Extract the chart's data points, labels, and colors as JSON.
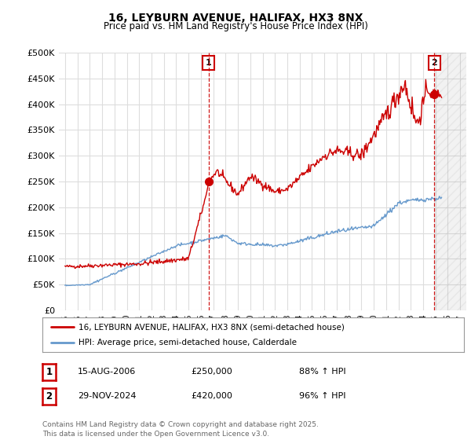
{
  "title": "16, LEYBURN AVENUE, HALIFAX, HX3 8NX",
  "subtitle": "Price paid vs. HM Land Registry's House Price Index (HPI)",
  "ylabel_ticks": [
    "£0",
    "£50K",
    "£100K",
    "£150K",
    "£200K",
    "£250K",
    "£300K",
    "£350K",
    "£400K",
    "£450K",
    "£500K"
  ],
  "ytick_vals": [
    0,
    50000,
    100000,
    150000,
    200000,
    250000,
    300000,
    350000,
    400000,
    450000,
    500000
  ],
  "ylim": [
    0,
    500000
  ],
  "xlim_start": 1994.5,
  "xlim_end": 2027.5,
  "xtick_years": [
    1995,
    1996,
    1997,
    1998,
    1999,
    2000,
    2001,
    2002,
    2003,
    2004,
    2005,
    2006,
    2007,
    2008,
    2009,
    2010,
    2011,
    2012,
    2013,
    2014,
    2015,
    2016,
    2017,
    2018,
    2019,
    2020,
    2021,
    2022,
    2023,
    2024,
    2025,
    2026,
    2027
  ],
  "red_line_color": "#cc0000",
  "blue_line_color": "#6699cc",
  "vline1_x": 2006.617,
  "vline2_x": 2024.914,
  "vline_color": "#cc0000",
  "marker1_y": 250000,
  "marker2_y": 420000,
  "annotation1_label": "1",
  "annotation2_label": "2",
  "legend_line1": "16, LEYBURN AVENUE, HALIFAX, HX3 8NX (semi-detached house)",
  "legend_line2": "HPI: Average price, semi-detached house, Calderdale",
  "note1_date": "15-AUG-2006",
  "note1_price": "£250,000",
  "note1_hpi": "88% ↑ HPI",
  "note2_date": "29-NOV-2024",
  "note2_price": "£420,000",
  "note2_hpi": "96% ↑ HPI",
  "footer": "Contains HM Land Registry data © Crown copyright and database right 2025.\nThis data is licensed under the Open Government Licence v3.0.",
  "bg_color": "#ffffff",
  "grid_color": "#dddddd"
}
